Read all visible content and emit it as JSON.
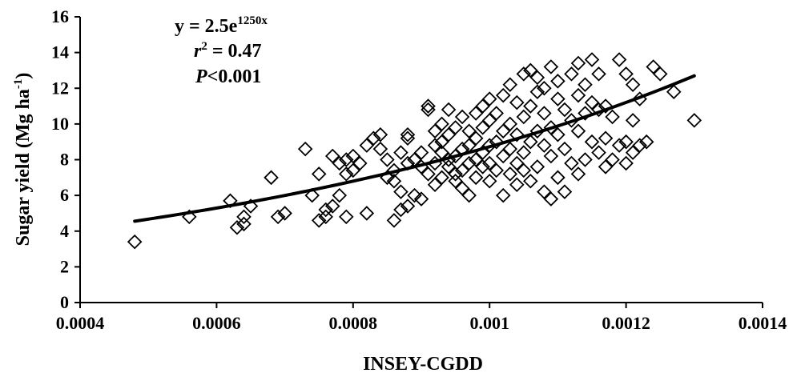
{
  "chart_data": {
    "type": "scatter",
    "xlabel": "INSEY-CGDD",
    "ylabel_main": "Sugar yield (Mg ha",
    "ylabel_sup": "-1",
    "ylabel_close": ")",
    "xlim": [
      0.0004,
      0.0014
    ],
    "ylim": [
      0,
      16
    ],
    "x_ticks": [
      "0.0004",
      "0.0006",
      "0.0008",
      "0.001",
      "0.0012",
      "0.0014"
    ],
    "y_ticks": [
      "0",
      "2",
      "4",
      "6",
      "8",
      "10",
      "12",
      "14",
      "16"
    ],
    "grid": false,
    "marker": "open-diamond",
    "annotation": {
      "eq_main": "y = 2.5e",
      "eq_exp": "1250x",
      "r2_r": "r",
      "r2_sup": "2",
      "r2_val": " = 0.47",
      "p_letter": "P",
      "p_val": "<0.001"
    },
    "fit": {
      "model": "y = 2.5e^(1250x)",
      "a": 2.5,
      "b": 1250,
      "x_range": [
        0.00048,
        0.0013
      ]
    },
    "points": [
      [
        0.00048,
        3.4
      ],
      [
        0.00056,
        4.8
      ],
      [
        0.00062,
        5.7
      ],
      [
        0.00063,
        4.2
      ],
      [
        0.00064,
        4.4
      ],
      [
        0.00064,
        4.8
      ],
      [
        0.00065,
        5.4
      ],
      [
        0.00068,
        7.0
      ],
      [
        0.00069,
        4.8
      ],
      [
        0.0007,
        5.0
      ],
      [
        0.00073,
        8.6
      ],
      [
        0.00074,
        6.0
      ],
      [
        0.00075,
        7.2
      ],
      [
        0.00075,
        4.6
      ],
      [
        0.00076,
        4.8
      ],
      [
        0.00076,
        5.2
      ],
      [
        0.00077,
        5.4
      ],
      [
        0.00077,
        8.2
      ],
      [
        0.00078,
        6.0
      ],
      [
        0.00078,
        7.8
      ],
      [
        0.00079,
        8.0
      ],
      [
        0.00079,
        7.2
      ],
      [
        0.00079,
        4.8
      ],
      [
        0.0008,
        7.4
      ],
      [
        0.0008,
        8.2
      ],
      [
        0.00081,
        7.8
      ],
      [
        0.00082,
        8.8
      ],
      [
        0.00082,
        5.0
      ],
      [
        0.00083,
        9.2
      ],
      [
        0.00084,
        9.4
      ],
      [
        0.00084,
        8.6
      ],
      [
        0.00085,
        7.0
      ],
      [
        0.00085,
        8.0
      ],
      [
        0.00086,
        6.8
      ],
      [
        0.00086,
        7.4
      ],
      [
        0.00086,
        4.6
      ],
      [
        0.00087,
        5.2
      ],
      [
        0.00087,
        6.2
      ],
      [
        0.00087,
        8.4
      ],
      [
        0.00088,
        7.8
      ],
      [
        0.00088,
        9.4
      ],
      [
        0.00088,
        9.2
      ],
      [
        0.00088,
        5.4
      ],
      [
        0.00089,
        6.0
      ],
      [
        0.00089,
        8.0
      ],
      [
        0.0009,
        5.8
      ],
      [
        0.0009,
        7.6
      ],
      [
        0.0009,
        8.4
      ],
      [
        0.00091,
        10.8
      ],
      [
        0.00091,
        11.0
      ],
      [
        0.00091,
        7.2
      ],
      [
        0.00092,
        7.8
      ],
      [
        0.00092,
        8.8
      ],
      [
        0.00092,
        6.6
      ],
      [
        0.00092,
        9.6
      ],
      [
        0.00093,
        9.0
      ],
      [
        0.00093,
        7.0
      ],
      [
        0.00093,
        8.4
      ],
      [
        0.00093,
        10.0
      ],
      [
        0.00094,
        9.4
      ],
      [
        0.00094,
        7.6
      ],
      [
        0.00094,
        8.0
      ],
      [
        0.00094,
        10.8
      ],
      [
        0.00095,
        7.2
      ],
      [
        0.00095,
        8.2
      ],
      [
        0.00095,
        9.8
      ],
      [
        0.00095,
        6.8
      ],
      [
        0.00096,
        7.4
      ],
      [
        0.00096,
        8.6
      ],
      [
        0.00096,
        10.4
      ],
      [
        0.00096,
        6.4
      ],
      [
        0.00097,
        6.0
      ],
      [
        0.00097,
        7.8
      ],
      [
        0.00097,
        8.8
      ],
      [
        0.00097,
        9.6
      ],
      [
        0.00098,
        7.0
      ],
      [
        0.00098,
        8.0
      ],
      [
        0.00098,
        9.2
      ],
      [
        0.00098,
        10.6
      ],
      [
        0.00099,
        7.6
      ],
      [
        0.00099,
        8.4
      ],
      [
        0.00099,
        9.8
      ],
      [
        0.00099,
        11.0
      ],
      [
        0.001,
        7.8
      ],
      [
        0.001,
        8.8
      ],
      [
        0.001,
        10.2
      ],
      [
        0.001,
        11.4
      ],
      [
        0.001,
        6.8
      ],
      [
        0.00101,
        7.4
      ],
      [
        0.00101,
        9.0
      ],
      [
        0.00101,
        10.6
      ],
      [
        0.00102,
        6.0
      ],
      [
        0.00102,
        8.2
      ],
      [
        0.00102,
        9.6
      ],
      [
        0.00102,
        11.6
      ],
      [
        0.00103,
        7.2
      ],
      [
        0.00103,
        8.6
      ],
      [
        0.00103,
        10.0
      ],
      [
        0.00103,
        12.2
      ],
      [
        0.00104,
        6.6
      ],
      [
        0.00104,
        7.8
      ],
      [
        0.00104,
        9.4
      ],
      [
        0.00104,
        11.2
      ],
      [
        0.00105,
        7.4
      ],
      [
        0.00105,
        8.4
      ],
      [
        0.00105,
        10.4
      ],
      [
        0.00105,
        12.8
      ],
      [
        0.00106,
        6.8
      ],
      [
        0.00106,
        9.0
      ],
      [
        0.00106,
        11.0
      ],
      [
        0.00106,
        13.0
      ],
      [
        0.00107,
        7.6
      ],
      [
        0.00107,
        9.6
      ],
      [
        0.00107,
        11.8
      ],
      [
        0.00107,
        12.6
      ],
      [
        0.00108,
        6.2
      ],
      [
        0.00108,
        8.8
      ],
      [
        0.00108,
        10.6
      ],
      [
        0.00108,
        12.0
      ],
      [
        0.00109,
        5.8
      ],
      [
        0.00109,
        8.2
      ],
      [
        0.00109,
        9.8
      ],
      [
        0.00109,
        13.2
      ],
      [
        0.0011,
        7.0
      ],
      [
        0.0011,
        9.4
      ],
      [
        0.0011,
        11.4
      ],
      [
        0.0011,
        12.4
      ],
      [
        0.00111,
        6.2
      ],
      [
        0.00111,
        8.6
      ],
      [
        0.00111,
        10.8
      ],
      [
        0.00112,
        7.8
      ],
      [
        0.00112,
        10.2
      ],
      [
        0.00112,
        12.8
      ],
      [
        0.00113,
        7.2
      ],
      [
        0.00113,
        9.6
      ],
      [
        0.00113,
        11.6
      ],
      [
        0.00113,
        13.4
      ],
      [
        0.00114,
        8.0
      ],
      [
        0.00114,
        10.6
      ],
      [
        0.00114,
        12.2
      ],
      [
        0.00115,
        9.0
      ],
      [
        0.00115,
        11.2
      ],
      [
        0.00115,
        13.6
      ],
      [
        0.00116,
        8.4
      ],
      [
        0.00116,
        10.8
      ],
      [
        0.00116,
        12.8
      ],
      [
        0.00117,
        7.6
      ],
      [
        0.00117,
        9.2
      ],
      [
        0.00117,
        11.0
      ],
      [
        0.00118,
        8.0
      ],
      [
        0.00118,
        10.4
      ],
      [
        0.00119,
        8.8
      ],
      [
        0.00119,
        13.6
      ],
      [
        0.0012,
        7.8
      ],
      [
        0.0012,
        9.0
      ],
      [
        0.0012,
        12.8
      ],
      [
        0.00121,
        8.4
      ],
      [
        0.00121,
        10.2
      ],
      [
        0.00121,
        12.2
      ],
      [
        0.00122,
        8.8
      ],
      [
        0.00122,
        11.4
      ],
      [
        0.00123,
        9.0
      ],
      [
        0.00124,
        13.2
      ],
      [
        0.00125,
        12.8
      ],
      [
        0.00127,
        11.8
      ],
      [
        0.0013,
        10.2
      ]
    ]
  }
}
